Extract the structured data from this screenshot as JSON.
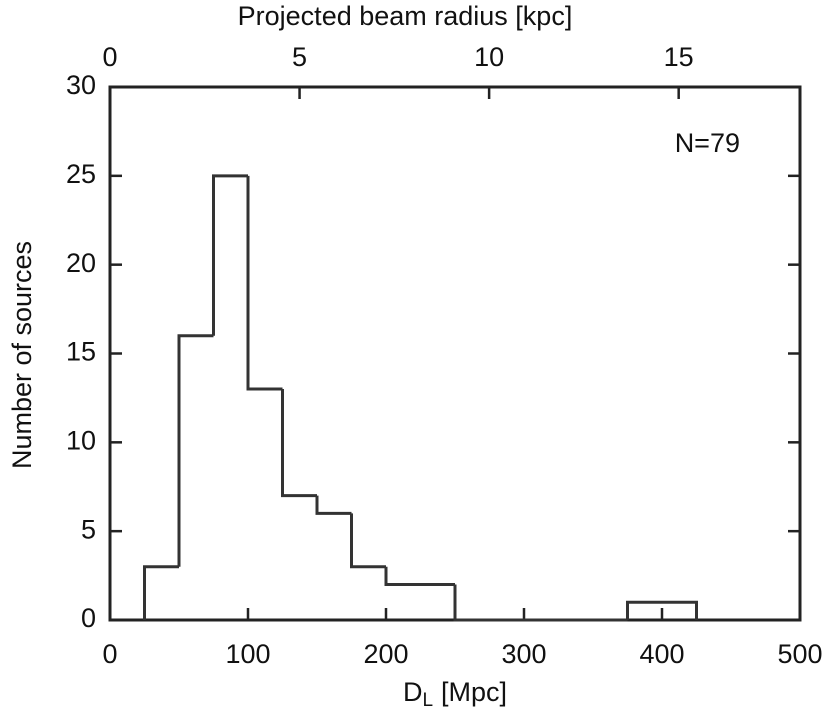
{
  "chart_data": {
    "type": "histogram",
    "x_label": {
      "main": "D",
      "sub": "L",
      "rest": "[Mpc]"
    },
    "y_label": "Number of sources",
    "x2_label": "Projected beam radius [kpc]",
    "annotation": "N=79",
    "bins": [
      25,
      50,
      75,
      100,
      125,
      150,
      175,
      200,
      225,
      250,
      275,
      300,
      325,
      350,
      375,
      400,
      425
    ],
    "values": [
      3,
      16,
      25,
      13,
      7,
      6,
      3,
      2,
      2,
      0,
      0,
      0,
      0,
      0,
      1,
      1
    ],
    "color": "#333333",
    "xlim": [
      0,
      500
    ],
    "xticks": [
      0,
      100,
      200,
      300,
      400,
      500
    ],
    "ylim": [
      0,
      30
    ],
    "yticks": [
      0,
      5,
      10,
      15,
      20,
      25,
      30
    ],
    "x2lim": [
      0,
      18.2
    ],
    "x2ticks": [
      0,
      5,
      10,
      15
    ]
  }
}
